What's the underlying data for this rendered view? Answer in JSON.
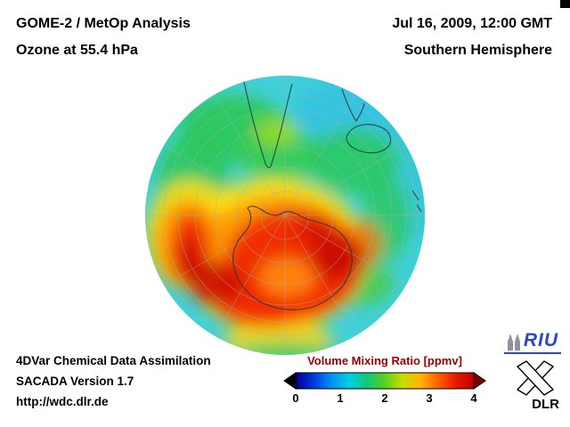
{
  "header": {
    "title_line1": "GOME-2 / MetOp Analysis",
    "title_line2": "Ozone at 55.4 hPa",
    "datetime": "Jul 16, 2009, 12:00 GMT",
    "hemisphere": "Southern Hemisphere"
  },
  "footer": {
    "assimilation": "4DVar Chemical Data Assimilation",
    "version": "SACADA Version 1.7",
    "url": "http://wdc.dlr.de"
  },
  "colorbar": {
    "title": "Volume Mixing Ratio [ppmv]",
    "title_color": "#a00000",
    "ticks": [
      "0",
      "1",
      "2",
      "3",
      "4"
    ],
    "colors": [
      "#000088",
      "#0038e0",
      "#0090f8",
      "#00d0e0",
      "#10c878",
      "#58d020",
      "#c8dc00",
      "#ffb400",
      "#ff6000",
      "#e81800",
      "#c00000"
    ],
    "under_color": "#000000",
    "over_color": "#7c0000"
  },
  "logos": {
    "riu_text": "RIU",
    "dlr_text": "DLR"
  },
  "map": {
    "units": "ppmv",
    "value_min": 0,
    "value_max": 4,
    "region": "Southern Hemisphere"
  },
  "chart_data": {
    "type": "heatmap",
    "title": "Ozone at 55.4 hPa - Volume Mixing Ratio [ppmv]",
    "colorbar_ticks": [
      0,
      1,
      2,
      3,
      4
    ],
    "value_range": [
      0,
      4
    ],
    "units": "ppmv",
    "view": "Southern Hemisphere polar view"
  }
}
